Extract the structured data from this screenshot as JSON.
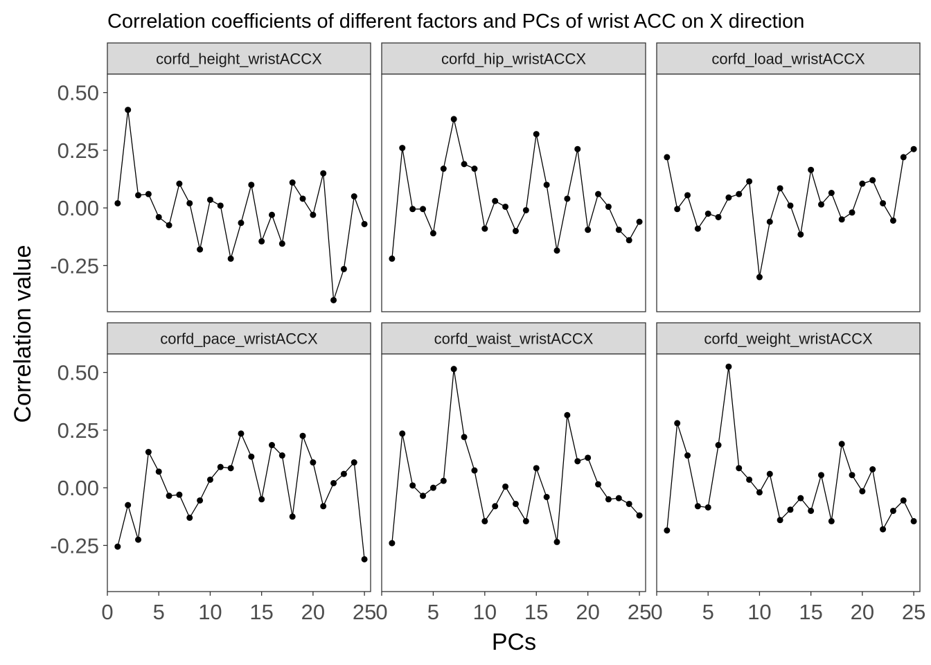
{
  "chart_data": {
    "type": "line",
    "title": "Correlation coefficients of different factors and PCs of wrist ACC on X direction",
    "xlabel": "PCs",
    "ylabel": "Correlation value",
    "xlim": [
      0,
      25
    ],
    "ylim": [
      -0.45,
      0.58
    ],
    "xticks": [
      0,
      5,
      10,
      15,
      20,
      25
    ],
    "xtick_labels": [
      "0",
      "5",
      "10",
      "15",
      "20",
      "25"
    ],
    "yticks": [
      -0.25,
      0,
      0.25,
      0.5
    ],
    "ytick_labels": [
      "-0.25",
      "0.00",
      "0.25",
      "0.50"
    ],
    "grid": false,
    "facets": [
      {
        "name": "corfd_height_wristACCX",
        "x": [
          1,
          2,
          3,
          4,
          5,
          6,
          7,
          8,
          9,
          10,
          11,
          12,
          13,
          14,
          15,
          16,
          17,
          18,
          19,
          20,
          21,
          22,
          23,
          24,
          25
        ],
        "values": [
          0.02,
          0.425,
          0.055,
          0.06,
          -0.04,
          -0.075,
          0.105,
          0.02,
          -0.18,
          0.035,
          0.01,
          -0.22,
          -0.065,
          0.1,
          -0.145,
          -0.03,
          -0.155,
          0.11,
          0.04,
          -0.03,
          0.15,
          -0.4,
          -0.265,
          0.05,
          -0.07
        ]
      },
      {
        "name": "corfd_hip_wristACCX",
        "x": [
          1,
          2,
          3,
          4,
          5,
          6,
          7,
          8,
          9,
          10,
          11,
          12,
          13,
          14,
          15,
          16,
          17,
          18,
          19,
          20,
          21,
          22,
          23,
          24,
          25
        ],
        "values": [
          -0.22,
          0.26,
          -0.005,
          -0.005,
          -0.11,
          0.17,
          0.385,
          0.19,
          0.17,
          -0.09,
          0.03,
          0.005,
          -0.1,
          -0.01,
          0.32,
          0.1,
          -0.185,
          0.04,
          0.255,
          -0.095,
          0.06,
          0.005,
          -0.095,
          -0.14,
          -0.06
        ]
      },
      {
        "name": "corfd_load_wristACCX",
        "x": [
          1,
          2,
          3,
          4,
          5,
          6,
          7,
          8,
          9,
          10,
          11,
          12,
          13,
          14,
          15,
          16,
          17,
          18,
          19,
          20,
          21,
          22,
          23,
          24,
          25
        ],
        "values": [
          0.22,
          -0.005,
          0.055,
          -0.09,
          -0.025,
          -0.04,
          0.045,
          0.06,
          0.115,
          -0.3,
          -0.06,
          0.085,
          0.01,
          -0.115,
          0.165,
          0.015,
          0.065,
          -0.05,
          -0.02,
          0.105,
          0.12,
          0.02,
          -0.055,
          0.22,
          0.255
        ]
      },
      {
        "name": "corfd_pace_wristACCX",
        "x": [
          1,
          2,
          3,
          4,
          5,
          6,
          7,
          8,
          9,
          10,
          11,
          12,
          13,
          14,
          15,
          16,
          17,
          18,
          19,
          20,
          21,
          22,
          23,
          24,
          25
        ],
        "values": [
          -0.255,
          -0.075,
          -0.225,
          0.155,
          0.07,
          -0.035,
          -0.03,
          -0.13,
          -0.055,
          0.035,
          0.09,
          0.085,
          0.235,
          0.135,
          -0.05,
          0.185,
          0.14,
          -0.125,
          0.225,
          0.11,
          -0.08,
          0.02,
          0.06,
          0.11,
          -0.31
        ]
      },
      {
        "name": "corfd_waist_wristACCX",
        "x": [
          1,
          2,
          3,
          4,
          5,
          6,
          7,
          8,
          9,
          10,
          11,
          12,
          13,
          14,
          15,
          16,
          17,
          18,
          19,
          20,
          21,
          22,
          23,
          24,
          25
        ],
        "values": [
          -0.24,
          0.235,
          0.01,
          -0.035,
          0.0,
          0.03,
          0.515,
          0.22,
          0.075,
          -0.145,
          -0.08,
          0.005,
          -0.07,
          -0.145,
          0.085,
          -0.04,
          -0.235,
          0.315,
          0.115,
          0.13,
          0.015,
          -0.05,
          -0.045,
          -0.07,
          -0.12
        ]
      },
      {
        "name": "corfd_weight_wristACCX",
        "x": [
          1,
          2,
          3,
          4,
          5,
          6,
          7,
          8,
          9,
          10,
          11,
          12,
          13,
          14,
          15,
          16,
          17,
          18,
          19,
          20,
          21,
          22,
          23,
          24,
          25
        ],
        "values": [
          -0.185,
          0.28,
          0.14,
          -0.08,
          -0.085,
          0.185,
          0.525,
          0.085,
          0.035,
          -0.02,
          0.06,
          -0.14,
          -0.095,
          -0.045,
          -0.1,
          0.055,
          -0.145,
          0.19,
          0.055,
          -0.015,
          0.08,
          -0.18,
          -0.1,
          -0.055,
          -0.145
        ]
      }
    ],
    "colors": {
      "line": "#000000",
      "point": "#000000",
      "strip_fill": "#d9d9d9",
      "panel_border": "#333333",
      "tick": "#333333",
      "tick_label": "#4d4d4d"
    }
  }
}
